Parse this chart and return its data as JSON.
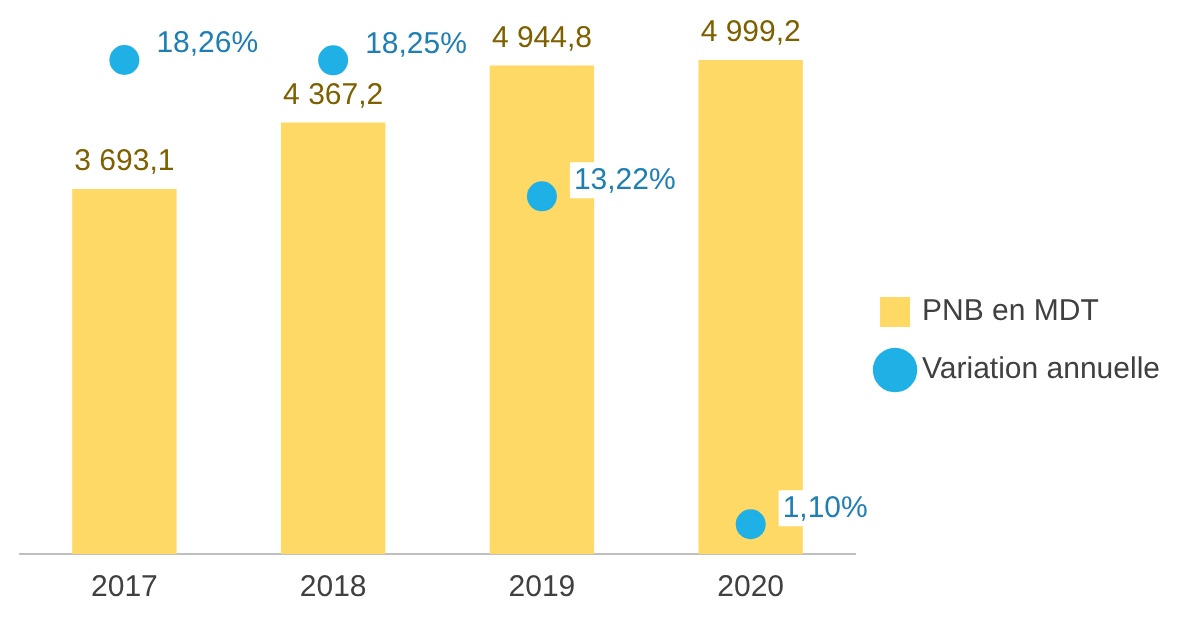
{
  "chart_data": {
    "type": "bar",
    "categories": [
      "2017",
      "2018",
      "2019",
      "2020"
    ],
    "series": [
      {
        "name": "PNB en MDT",
        "color": "#ffd966",
        "values": [
          3693.1,
          4367.2,
          4944.8,
          4999.2
        ],
        "value_labels": [
          "3 693,1",
          "4 367,2",
          "4 944,8",
          "4 999,2"
        ]
      },
      {
        "name": "Variation annuelle",
        "type": "scatter",
        "axis": "y2",
        "color": "#1fb0e6",
        "values": [
          18.26,
          18.25,
          13.22,
          1.1
        ],
        "value_labels": [
          "18,26%",
          "18,25%",
          "13,22%",
          "1,10%"
        ]
      }
    ],
    "tick_labels": "x",
    "grid": false,
    "legend": "right",
    "marker": "circle"
  }
}
